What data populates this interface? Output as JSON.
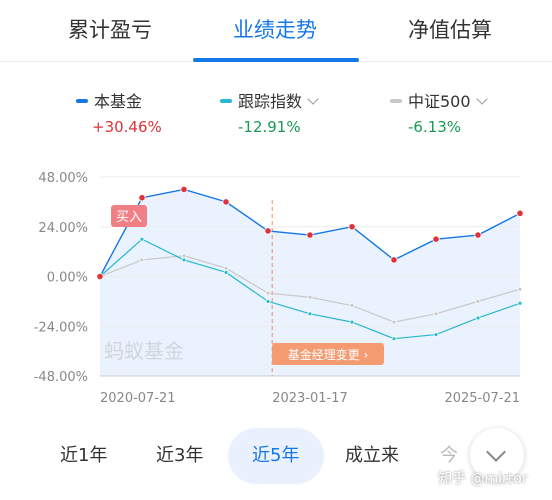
{
  "tabs": [
    {
      "label": "累计盈亏"
    },
    {
      "label": "业绩走势"
    },
    {
      "label": "净值估算"
    }
  ],
  "legend": [
    {
      "name": "本基金",
      "value": "+30.46%",
      "color": "#1677e6",
      "value_color": "#e0323a"
    },
    {
      "name": "跟踪指数",
      "value": "-12.91%",
      "color": "#28b8cf",
      "value_color": "#1a9a52"
    },
    {
      "name": "中证500",
      "value": "-6.13%",
      "color": "#c8c8c8",
      "value_color": "#1a9a52"
    }
  ],
  "chart": {
    "y_ticks": [
      "48.00%",
      "24.00%",
      "0.00%",
      "-24.00%",
      "-48.00%"
    ],
    "x_ticks": [
      "2020-07-21",
      "2023-01-17",
      "2025-07-21"
    ],
    "watermark": "蚂蚁基金",
    "buy_tag": "买入",
    "manager_tag": "基金经理变更 ›"
  },
  "chart_data": {
    "type": "line",
    "x": [
      "2020-07-21",
      "2021-01",
      "2021-07",
      "2022-01",
      "2022-07",
      "2023-01-17",
      "2023-07",
      "2024-01",
      "2024-07",
      "2025-01",
      "2025-07-21"
    ],
    "series": [
      {
        "name": "本基金",
        "values": [
          0,
          38,
          42,
          36,
          22,
          20,
          24,
          8,
          18,
          20,
          30.46
        ]
      },
      {
        "name": "跟踪指数",
        "values": [
          0,
          18,
          8,
          2,
          -12,
          -18,
          -22,
          -30,
          -28,
          -20,
          -12.91
        ]
      },
      {
        "name": "中证500",
        "values": [
          0,
          8,
          10,
          4,
          -8,
          -10,
          -14,
          -22,
          -18,
          -12,
          -6.13
        ]
      }
    ],
    "ylim": [
      -48,
      48
    ],
    "grid": true
  },
  "ranges": [
    {
      "label": "近1年"
    },
    {
      "label": "近3年"
    },
    {
      "label": "近5年"
    },
    {
      "label": "成立来"
    },
    {
      "label": "今"
    }
  ],
  "watermark": "知乎 @mirtor"
}
